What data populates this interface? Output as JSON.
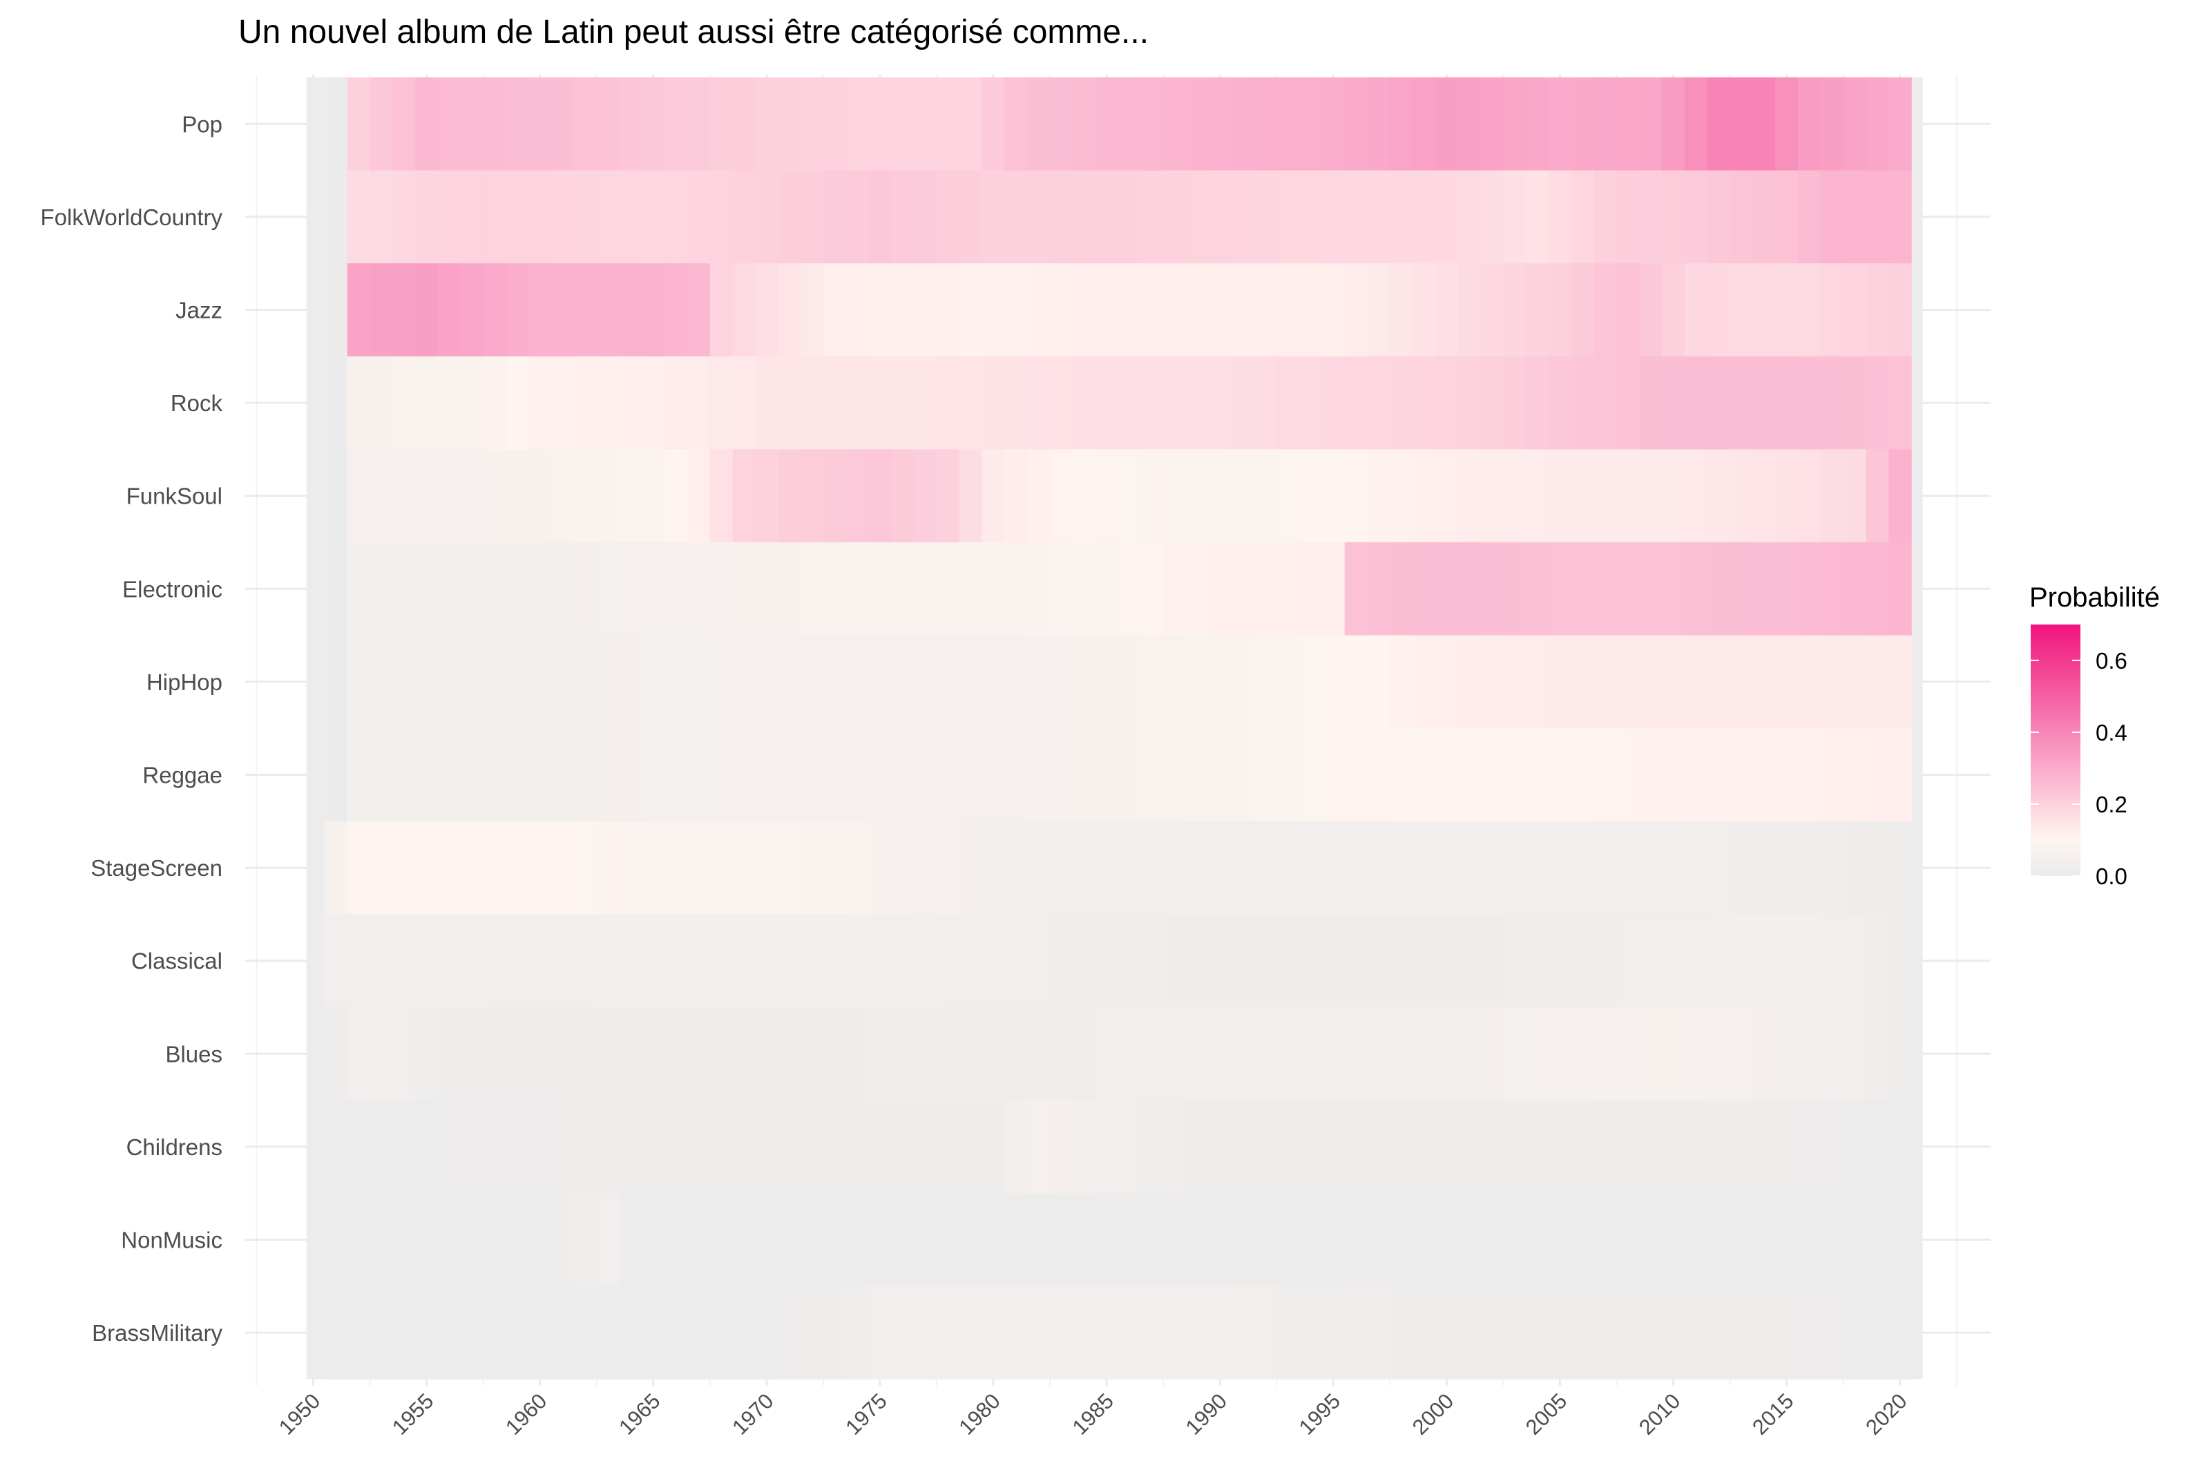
{
  "chart_data": {
    "type": "heatmap",
    "title": "Un nouvel album de Latin  peut aussi être catégorisé comme...",
    "xlabel": "",
    "ylabel": "",
    "x_ticks": [
      "1950",
      "1955",
      "1960",
      "1965",
      "1970",
      "1975",
      "1980",
      "1985",
      "1990",
      "1995",
      "2000",
      "2005",
      "2010",
      "2015",
      "2020"
    ],
    "xlim": [
      1947,
      2024
    ],
    "x_range": [
      1951,
      2020
    ],
    "categories": [
      "Pop",
      "FolkWorldCountry",
      "Jazz",
      "Rock",
      "FunkSoul",
      "Electronic",
      "HipHop",
      "Reggae",
      "StageScreen",
      "Classical",
      "Blues",
      "Childrens",
      "NonMusic",
      "BrassMilitary"
    ],
    "legend": {
      "title": "Probabilité",
      "ticks": [
        "0.0",
        "0.2",
        "0.4",
        "0.6"
      ],
      "range": [
        0,
        0.7
      ],
      "position": "right",
      "colors": {
        "low": "#ebebeb",
        "mid": "#fff5f0",
        "high": "#f0147d"
      }
    },
    "grid": true,
    "series": [
      {
        "name": "Pop",
        "values": {
          "1951": 0.0,
          "1952": 0.2,
          "1955": 0.26,
          "1962": 0.24,
          "1965": 0.22,
          "1970": 0.2,
          "1975": 0.19,
          "1979": 0.19,
          "1981": 0.24,
          "1985": 0.26,
          "1990": 0.28,
          "1995": 0.29,
          "2000": 0.33,
          "2005": 0.3,
          "2009": 0.31,
          "2012": 0.4,
          "2014": 0.4,
          "2016": 0.34,
          "2020": 0.3
        }
      },
      {
        "name": "FolkWorldCountry",
        "values": {
          "1951": 0.0,
          "1952": 0.17,
          "1956": 0.19,
          "1960": 0.19,
          "1965": 0.18,
          "1970": 0.2,
          "1975": 0.22,
          "1980": 0.2,
          "1985": 0.2,
          "1990": 0.19,
          "1995": 0.18,
          "2000": 0.18,
          "2004": 0.15,
          "2007": 0.2,
          "2010": 0.21,
          "2015": 0.24,
          "2017": 0.27,
          "2020": 0.27
        }
      },
      {
        "name": "Jazz",
        "values": {
          "1951": 0.0,
          "1952": 0.32,
          "1955": 0.33,
          "1960": 0.28,
          "1965": 0.28,
          "1967": 0.26,
          "1968": 0.19,
          "1970": 0.16,
          "1973": 0.12,
          "1980": 0.11,
          "1985": 0.12,
          "1990": 0.12,
          "1995": 0.12,
          "1998": 0.14,
          "2002": 0.18,
          "2005": 0.2,
          "2008": 0.24,
          "2011": 0.18,
          "2015": 0.17,
          "2020": 0.2
        }
      },
      {
        "name": "Rock",
        "values": {
          "1951": 0.0,
          "1952": 0.06,
          "1957": 0.07,
          "1960": 0.11,
          "1965": 0.12,
          "1970": 0.14,
          "1975": 0.14,
          "1980": 0.15,
          "1985": 0.16,
          "1990": 0.16,
          "1995": 0.18,
          "2000": 0.19,
          "2005": 0.22,
          "2010": 0.25,
          "2015": 0.25,
          "2020": 0.24
        }
      },
      {
        "name": "FunkSoul",
        "values": {
          "1951": 0.0,
          "1952": 0.05,
          "1960": 0.06,
          "1965": 0.08,
          "1967": 0.12,
          "1969": 0.19,
          "1972": 0.21,
          "1975": 0.22,
          "1978": 0.2,
          "1980": 0.13,
          "1985": 0.09,
          "1988": 0.08,
          "1992": 0.08,
          "1995": 0.1,
          "2000": 0.12,
          "2005": 0.13,
          "2010": 0.13,
          "2015": 0.15,
          "2018": 0.17,
          "2020": 0.28
        }
      },
      {
        "name": "Electronic",
        "values": {
          "1951": 0.0,
          "1952": 0.04,
          "1960": 0.04,
          "1965": 0.05,
          "1970": 0.06,
          "1975": 0.07,
          "1980": 0.07,
          "1985": 0.08,
          "1988": 0.11,
          "1995": 0.12,
          "1996": 0.24,
          "2000": 0.25,
          "2005": 0.24,
          "2010": 0.24,
          "2015": 0.25,
          "2020": 0.27
        }
      },
      {
        "name": "HipHop",
        "values": {
          "1951": 0.0,
          "1952": 0.04,
          "1960": 0.04,
          "1970": 0.05,
          "1980": 0.05,
          "1985": 0.06,
          "1990": 0.07,
          "1995": 0.09,
          "2000": 0.12,
          "2005": 0.13,
          "2010": 0.13,
          "2015": 0.13,
          "2020": 0.13
        }
      },
      {
        "name": "Reggae",
        "values": {
          "1951": 0.0,
          "1952": 0.04,
          "1960": 0.04,
          "1970": 0.05,
          "1980": 0.05,
          "1985": 0.06,
          "1990": 0.07,
          "1995": 0.09,
          "2000": 0.1,
          "2005": 0.1,
          "2010": 0.11,
          "2015": 0.11,
          "2020": 0.12
        }
      },
      {
        "name": "StageScreen",
        "values": {
          "1951": 0.06,
          "1952": 0.09,
          "1955": 0.1,
          "1960": 0.09,
          "1965": 0.08,
          "1970": 0.08,
          "1975": 0.06,
          "1980": 0.04,
          "1990": 0.03,
          "2000": 0.03,
          "2010": 0.03,
          "2020": 0.02
        }
      },
      {
        "name": "Classical",
        "values": {
          "1951": 0.03,
          "1955": 0.04,
          "1960": 0.03,
          "1965": 0.04,
          "1970": 0.04,
          "1975": 0.04,
          "1980": 0.03,
          "1990": 0.02,
          "2000": 0.02,
          "2010": 0.03,
          "2015": 0.04,
          "2020": 0.02
        }
      },
      {
        "name": "Blues",
        "values": {
          "1951": 0.02,
          "1953": 0.04,
          "1956": 0.02,
          "1970": 0.02,
          "1990": 0.03,
          "2000": 0.04,
          "2010": 0.06,
          "2015": 0.04,
          "2020": 0.02
        }
      },
      {
        "name": "Childrens",
        "values": {
          "1951": 0.01,
          "1970": 0.02,
          "1980": 0.02,
          "1982": 0.05,
          "1985": 0.03,
          "1990": 0.02,
          "2000": 0.02,
          "2010": 0.02,
          "2020": 0.01
        }
      },
      {
        "name": "NonMusic",
        "values": {
          "1951": 0.01,
          "1960": 0.01,
          "1963": 0.03,
          "1964": 0.01,
          "1990": 0.01,
          "2020": 0.01
        }
      },
      {
        "name": "BrassMilitary",
        "values": {
          "1951": 0.01,
          "1970": 0.01,
          "1975": 0.03,
          "1985": 0.03,
          "1990": 0.03,
          "2000": 0.02,
          "2010": 0.02,
          "2020": 0.01
        }
      }
    ]
  }
}
